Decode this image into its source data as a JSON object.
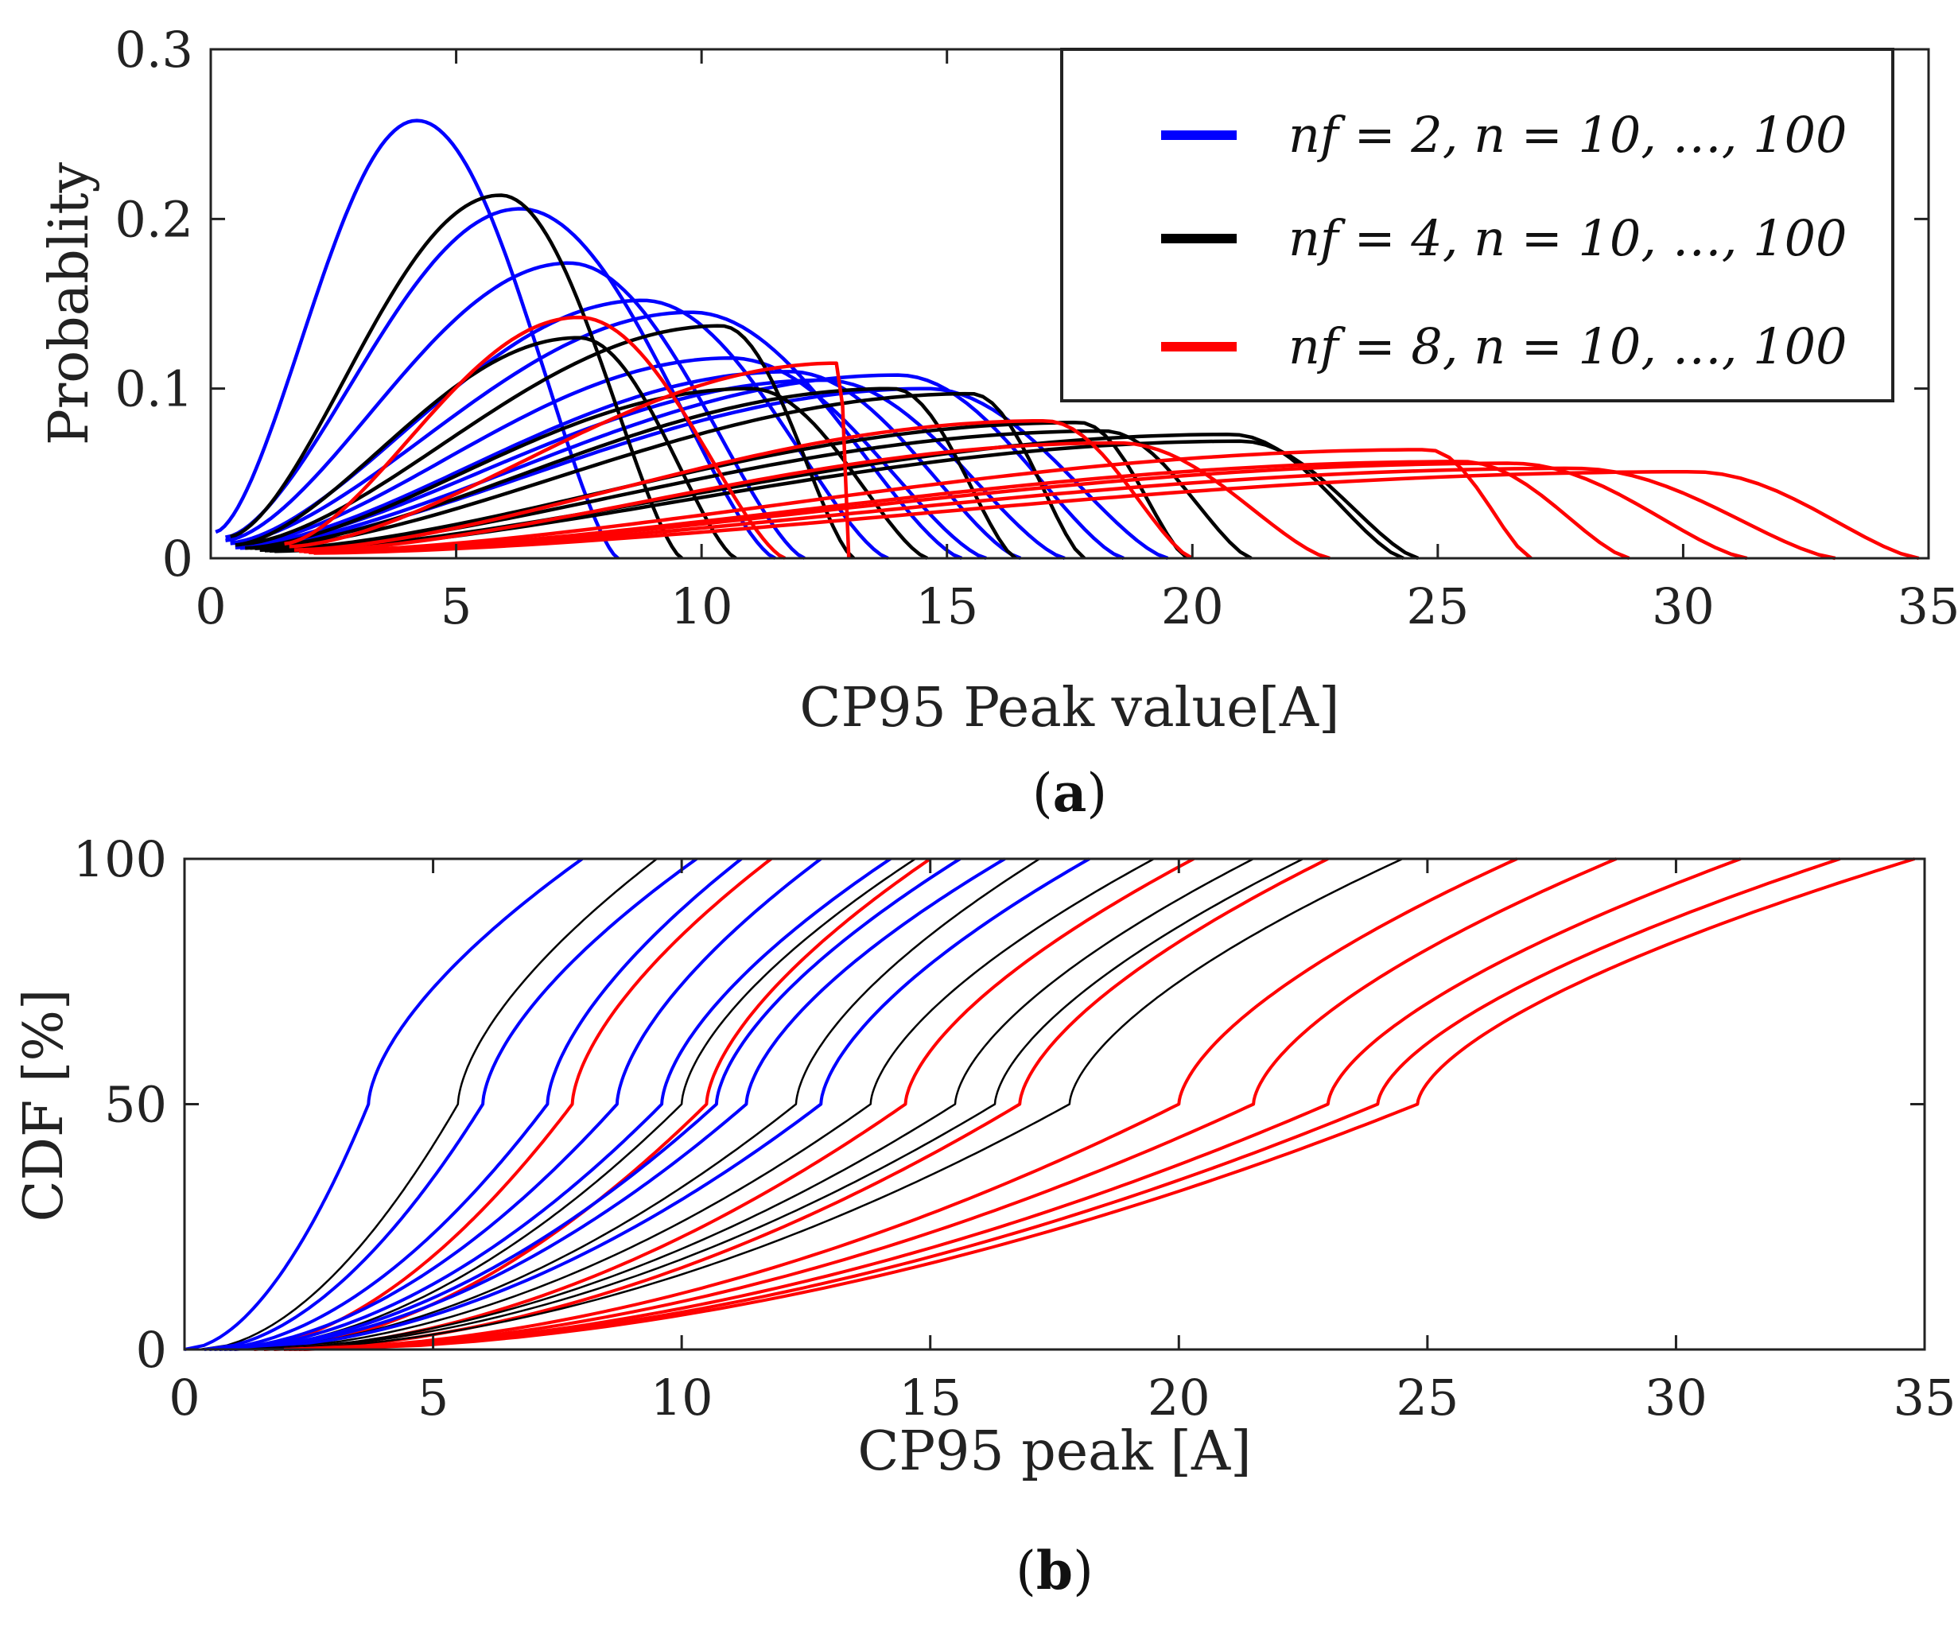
{
  "chart_data": [
    {
      "id": "a",
      "type": "line",
      "xlabel": "CP95 Peak value[A]",
      "ylabel": "Probablity",
      "xlim": [
        0,
        35
      ],
      "ylim": [
        0,
        0.3
      ],
      "xticks": [
        "0",
        "5",
        "10",
        "15",
        "20",
        "25",
        "30",
        "35"
      ],
      "yticks": [
        "0",
        "0.1",
        "0.2",
        "0.3"
      ],
      "legend": [
        {
          "label": "nf = 2, n = 10, …, 100",
          "color": "#0000ff"
        },
        {
          "label": "nf = 4, n = 10, …, 100",
          "color": "#000000"
        },
        {
          "label": "nf = 8, n = 10, …, 100",
          "color": "#ff0000"
        }
      ],
      "legend_position": "top-right",
      "series": [
        {
          "name": "nf=2 n=10",
          "color": "#0000ff",
          "xmin": 0.1,
          "peak_x": 4.2,
          "peak_y": 0.258,
          "xmax": 8.3
        },
        {
          "name": "nf=2 n=20",
          "color": "#0000ff",
          "xmin": 0.3,
          "peak_x": 6.3,
          "peak_y": 0.206,
          "xmax": 11.5
        },
        {
          "name": "nf=2 n=30",
          "color": "#0000ff",
          "xmin": 0.3,
          "peak_x": 7.3,
          "peak_y": 0.174,
          "xmax": 12.1
        },
        {
          "name": "nf=2 n=40",
          "color": "#0000ff",
          "xmin": 0.4,
          "peak_x": 8.8,
          "peak_y": 0.152,
          "xmax": 13.8
        },
        {
          "name": "nf=2 n=50",
          "color": "#0000ff",
          "xmin": 0.4,
          "peak_x": 9.8,
          "peak_y": 0.145,
          "xmax": 15.3
        },
        {
          "name": "nf=2 n=60",
          "color": "#0000ff",
          "xmin": 0.5,
          "peak_x": 10.6,
          "peak_y": 0.118,
          "xmax": 15.8
        },
        {
          "name": "nf=2 n=70",
          "color": "#0000ff",
          "xmin": 0.5,
          "peak_x": 11.8,
          "peak_y": 0.11,
          "xmax": 16.5
        },
        {
          "name": "nf=2 n=80",
          "color": "#0000ff",
          "xmin": 0.5,
          "peak_x": 12.5,
          "peak_y": 0.105,
          "xmax": 17.4
        },
        {
          "name": "nf=2 n=90",
          "color": "#0000ff",
          "xmin": 0.6,
          "peak_x": 14.0,
          "peak_y": 0.108,
          "xmax": 18.6
        },
        {
          "name": "nf=2 n=100",
          "color": "#0000ff",
          "xmin": 0.6,
          "peak_x": 14.6,
          "peak_y": 0.1,
          "xmax": 19.5
        },
        {
          "name": "nf=4 n=10",
          "color": "#000000",
          "xmin": 0.4,
          "peak_x": 5.9,
          "peak_y": 0.214,
          "xmax": 9.6
        },
        {
          "name": "nf=4 n=20",
          "color": "#000000",
          "xmin": 0.5,
          "peak_x": 7.5,
          "peak_y": 0.13,
          "xmax": 10.7
        },
        {
          "name": "nf=4 n=30",
          "color": "#000000",
          "xmin": 0.6,
          "peak_x": 10.4,
          "peak_y": 0.137,
          "xmax": 13.1
        },
        {
          "name": "nf=4 n=40",
          "color": "#000000",
          "xmin": 0.7,
          "peak_x": 11.0,
          "peak_y": 0.1,
          "xmax": 14.6
        },
        {
          "name": "nf=4 n=50",
          "color": "#000000",
          "xmin": 0.8,
          "peak_x": 13.9,
          "peak_y": 0.1,
          "xmax": 16.4
        },
        {
          "name": "nf=4 n=60",
          "color": "#000000",
          "xmin": 0.9,
          "peak_x": 15.5,
          "peak_y": 0.097,
          "xmax": 17.8
        },
        {
          "name": "nf=4 n=70",
          "color": "#000000",
          "xmin": 1.0,
          "peak_x": 17.7,
          "peak_y": 0.08,
          "xmax": 19.9
        },
        {
          "name": "nf=4 n=80",
          "color": "#000000",
          "xmin": 1.1,
          "peak_x": 18.2,
          "peak_y": 0.075,
          "xmax": 21.2
        },
        {
          "name": "nf=4 n=90",
          "color": "#000000",
          "xmin": 1.2,
          "peak_x": 20.8,
          "peak_y": 0.073,
          "xmax": 24.3
        },
        {
          "name": "nf=4 n=100",
          "color": "#000000",
          "xmin": 1.3,
          "peak_x": 21.0,
          "peak_y": 0.069,
          "xmax": 24.6
        },
        {
          "name": "nf=8 n=10",
          "color": "#ff0000",
          "xmin": 1.5,
          "peak_x": 7.5,
          "peak_y": 0.142,
          "xmax": 11.7
        },
        {
          "name": "nf=8 n=20",
          "color": "#ff0000",
          "xmin": 1.6,
          "peak_x": 12.8,
          "peak_y": 0.115,
          "xmax": 13.0
        },
        {
          "name": "nf=8 n=30",
          "color": "#ff0000",
          "xmin": 1.7,
          "peak_x": 17.0,
          "peak_y": 0.081,
          "xmax": 20.0
        },
        {
          "name": "nf=8 n=40",
          "color": "#ff0000",
          "xmin": 1.8,
          "peak_x": 18.5,
          "peak_y": 0.068,
          "xmax": 22.8
        },
        {
          "name": "nf=8 n=50",
          "color": "#ff0000",
          "xmin": 1.9,
          "peak_x": 24.8,
          "peak_y": 0.064,
          "xmax": 26.9
        },
        {
          "name": "nf=8 n=60",
          "color": "#ff0000",
          "xmin": 2.0,
          "peak_x": 25.5,
          "peak_y": 0.057,
          "xmax": 28.9
        },
        {
          "name": "nf=8 n=70",
          "color": "#ff0000",
          "xmin": 2.0,
          "peak_x": 26.5,
          "peak_y": 0.056,
          "xmax": 31.3
        },
        {
          "name": "nf=8 n=80",
          "color": "#ff0000",
          "xmin": 2.1,
          "peak_x": 27.8,
          "peak_y": 0.053,
          "xmax": 33.1
        },
        {
          "name": "nf=8 n=90",
          "color": "#ff0000",
          "xmin": 2.1,
          "peak_x": 30.2,
          "peak_y": 0.051,
          "xmax": 34.8
        }
      ]
    },
    {
      "id": "b",
      "type": "line",
      "xlabel": "CP95 peak [A]",
      "ylabel": "CDF [%]",
      "xlim": [
        0,
        35
      ],
      "ylim": [
        0,
        100
      ],
      "xticks": [
        "0",
        "5",
        "10",
        "15",
        "20",
        "25",
        "30",
        "35"
      ],
      "yticks": [
        "0",
        "50",
        "100"
      ],
      "series": [
        {
          "name": "nf=2 n=10",
          "color": "#0000ff",
          "x_start": 0.0,
          "x_median": 3.7,
          "x_end": 8.0
        },
        {
          "name": "nf=4 n=10",
          "color": "#000000",
          "x_start": 0.3,
          "x_median": 5.5,
          "x_end": 9.5
        },
        {
          "name": "nf=2 n=20",
          "color": "#0000ff",
          "x_start": 0.4,
          "x_median": 6.0,
          "x_end": 10.3
        },
        {
          "name": "nf=2 n=30",
          "color": "#0000ff",
          "x_start": 0.5,
          "x_median": 7.3,
          "x_end": 11.2
        },
        {
          "name": "nf=8 n=10",
          "color": "#ff0000",
          "x_start": 1.0,
          "x_median": 7.8,
          "x_end": 11.8
        },
        {
          "name": "nf=2 n=40",
          "color": "#0000ff",
          "x_start": 0.6,
          "x_median": 8.7,
          "x_end": 12.8
        },
        {
          "name": "nf=2 n=50",
          "color": "#0000ff",
          "x_start": 0.7,
          "x_median": 9.6,
          "x_end": 14.2
        },
        {
          "name": "nf=4 n=20",
          "color": "#000000",
          "x_start": 0.9,
          "x_median": 10.0,
          "x_end": 14.7
        },
        {
          "name": "nf=8 n=20",
          "color": "#ff0000",
          "x_start": 1.4,
          "x_median": 10.5,
          "x_end": 15.0
        },
        {
          "name": "nf=2 n=60",
          "color": "#0000ff",
          "x_start": 0.8,
          "x_median": 10.7,
          "x_end": 15.6
        },
        {
          "name": "nf=2 n=70",
          "color": "#0000ff",
          "x_start": 0.9,
          "x_median": 11.3,
          "x_end": 16.5
        },
        {
          "name": "nf=4 n=30",
          "color": "#000000",
          "x_start": 1.0,
          "x_median": 12.3,
          "x_end": 17.2
        },
        {
          "name": "nf=2 n=80",
          "color": "#0000ff",
          "x_start": 1.0,
          "x_median": 12.8,
          "x_end": 18.2
        },
        {
          "name": "nf=4 n=40",
          "color": "#000000",
          "x_start": 1.2,
          "x_median": 13.8,
          "x_end": 19.5
        },
        {
          "name": "nf=8 n=30",
          "color": "#ff0000",
          "x_start": 1.6,
          "x_median": 14.5,
          "x_end": 20.3
        },
        {
          "name": "nf=4 n=50",
          "color": "#000000",
          "x_start": 1.3,
          "x_median": 15.5,
          "x_end": 21.5
        },
        {
          "name": "nf=4 n=60",
          "color": "#000000",
          "x_start": 1.4,
          "x_median": 16.3,
          "x_end": 22.5
        },
        {
          "name": "nf=8 n=40",
          "color": "#ff0000",
          "x_start": 1.8,
          "x_median": 16.8,
          "x_end": 23.0
        },
        {
          "name": "nf=4 n=70",
          "color": "#000000",
          "x_start": 1.5,
          "x_median": 17.8,
          "x_end": 24.5
        },
        {
          "name": "nf=8 n=50",
          "color": "#ff0000",
          "x_start": 2.0,
          "x_median": 20.0,
          "x_end": 26.8
        },
        {
          "name": "nf=8 n=60",
          "color": "#ff0000",
          "x_start": 2.1,
          "x_median": 21.5,
          "x_end": 28.8
        },
        {
          "name": "nf=8 n=70",
          "color": "#ff0000",
          "x_start": 2.2,
          "x_median": 23.0,
          "x_end": 31.3
        },
        {
          "name": "nf=8 n=80",
          "color": "#ff0000",
          "x_start": 2.3,
          "x_median": 24.0,
          "x_end": 33.3
        },
        {
          "name": "nf=8 n=90",
          "color": "#ff0000",
          "x_start": 2.4,
          "x_median": 24.8,
          "x_end": 34.8
        }
      ]
    }
  ],
  "captions": {
    "a": {
      "open": "(",
      "letter": "a",
      "close": ")"
    },
    "b": {
      "open": "(",
      "letter": "b",
      "close": ")"
    }
  }
}
